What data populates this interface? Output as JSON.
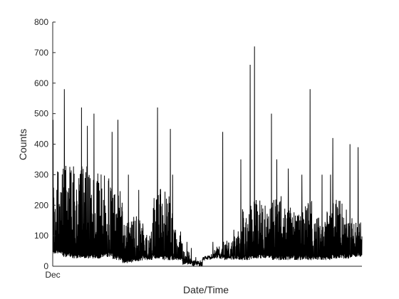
{
  "chart_data": {
    "type": "line",
    "title": "",
    "xlabel": "Date/Time",
    "ylabel": "Counts",
    "ylim": [
      0,
      800
    ],
    "yticks": [
      0,
      100,
      200,
      300,
      400,
      500,
      600,
      700,
      800
    ],
    "xtick_labels": [
      "Dec"
    ],
    "grid": false,
    "line_color": "#000000",
    "series": [
      {
        "samples_per_segment": 60,
        "segments": [
          {
            "base": 40,
            "peak": 320,
            "spike": 480
          },
          {
            "base": 30,
            "peak": 330,
            "spike": 580
          },
          {
            "base": 25,
            "peak": 340,
            "spike": 520
          },
          {
            "base": 25,
            "peak": 330,
            "spike": 460
          },
          {
            "base": 25,
            "peak": 320,
            "spike": 500
          },
          {
            "base": 30,
            "peak": 300,
            "spike": 440
          },
          {
            "base": 20,
            "peak": 250,
            "spike": 480
          },
          {
            "base": 10,
            "peak": 150,
            "spike": 300
          },
          {
            "base": 15,
            "peak": 180,
            "spike": 250
          },
          {
            "base": 20,
            "peak": 120,
            "spike": 140
          },
          {
            "base": 25,
            "peak": 260,
            "spike": 520
          },
          {
            "base": 20,
            "peak": 250,
            "spike": 450
          },
          {
            "base": 20,
            "peak": 120,
            "spike": 300
          },
          {
            "base": 5,
            "peak": 60,
            "spike": 80
          },
          {
            "base": 0,
            "peak": 20,
            "spike": 30
          },
          {
            "base": 20,
            "peak": 35,
            "spike": 40
          },
          {
            "base": 25,
            "peak": 70,
            "spike": 80
          },
          {
            "base": 20,
            "peak": 90,
            "spike": 440
          },
          {
            "base": 20,
            "peak": 120,
            "spike": 350
          },
          {
            "base": 20,
            "peak": 200,
            "spike": 660
          },
          {
            "base": 25,
            "peak": 220,
            "spike": 720
          },
          {
            "base": 25,
            "peak": 200,
            "spike": 500
          },
          {
            "base": 20,
            "peak": 240,
            "spike": 350
          },
          {
            "base": 20,
            "peak": 200,
            "spike": 320
          },
          {
            "base": 20,
            "peak": 180,
            "spike": 300
          },
          {
            "base": 20,
            "peak": 220,
            "spike": 580
          },
          {
            "base": 20,
            "peak": 160,
            "spike": 300
          },
          {
            "base": 20,
            "peak": 180,
            "spike": 300
          },
          {
            "base": 25,
            "peak": 220,
            "spike": 420
          },
          {
            "base": 25,
            "peak": 200,
            "spike": 400
          },
          {
            "base": 30,
            "peak": 150,
            "spike": 390
          }
        ]
      }
    ]
  }
}
